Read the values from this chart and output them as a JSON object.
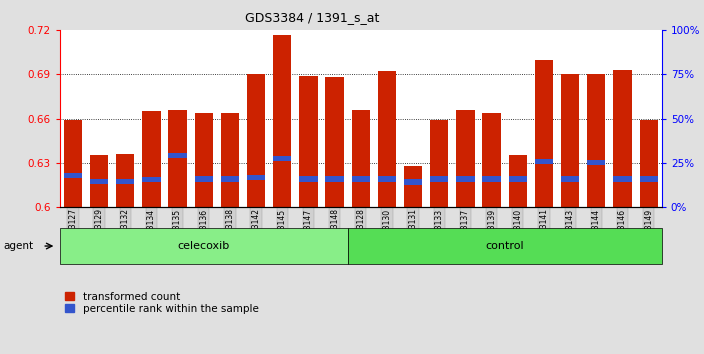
{
  "title": "GDS3384 / 1391_s_at",
  "samples": [
    "GSM283127",
    "GSM283129",
    "GSM283132",
    "GSM283134",
    "GSM283135",
    "GSM283136",
    "GSM283138",
    "GSM283142",
    "GSM283145",
    "GSM283147",
    "GSM283148",
    "GSM283128",
    "GSM283130",
    "GSM283131",
    "GSM283133",
    "GSM283137",
    "GSM283139",
    "GSM283140",
    "GSM283141",
    "GSM283143",
    "GSM283144",
    "GSM283146",
    "GSM283149"
  ],
  "red_values": [
    0.659,
    0.635,
    0.636,
    0.665,
    0.666,
    0.664,
    0.664,
    0.69,
    0.717,
    0.689,
    0.688,
    0.666,
    0.692,
    0.628,
    0.659,
    0.666,
    0.664,
    0.635,
    0.7,
    0.69,
    0.69,
    0.693,
    0.659
  ],
  "blue_values": [
    0.6215,
    0.6175,
    0.6175,
    0.6185,
    0.635,
    0.619,
    0.619,
    0.62,
    0.633,
    0.619,
    0.619,
    0.619,
    0.619,
    0.617,
    0.619,
    0.619,
    0.619,
    0.619,
    0.631,
    0.619,
    0.63,
    0.619,
    0.619
  ],
  "num_celecoxib": 11,
  "num_control": 12,
  "ymin": 0.6,
  "ymax": 0.72,
  "yticks_left": [
    0.6,
    0.63,
    0.66,
    0.69,
    0.72
  ],
  "yticks_right": [
    0,
    25,
    50,
    75,
    100
  ],
  "bar_color": "#cc2200",
  "blue_color": "#3355cc",
  "bg_color": "#e0e0e0",
  "plot_bg_color": "#ffffff",
  "celecoxib_color": "#88ee88",
  "control_color": "#55dd55",
  "agent_label": "agent",
  "celecoxib_label": "celecoxib",
  "control_label": "control",
  "legend_red": "transformed count",
  "legend_blue": "percentile rank within the sample"
}
